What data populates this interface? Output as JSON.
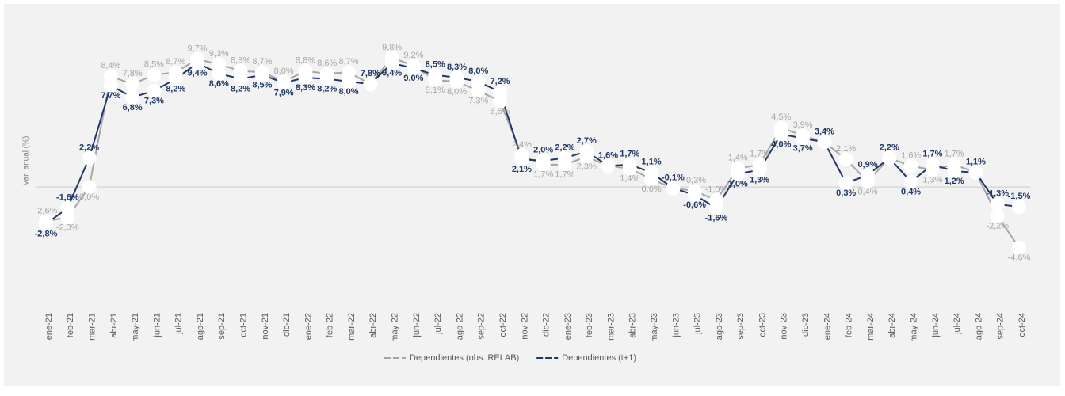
{
  "chart_data": {
    "type": "line",
    "y_label": "Var. anual (%)",
    "categories": [
      "ene-21",
      "feb-21",
      "mar-21",
      "abr-21",
      "may-21",
      "jun-21",
      "jul-21",
      "ago-21",
      "sep-21",
      "oct-21",
      "nov-21",
      "dic-21",
      "ene-22",
      "feb-22",
      "mar-22",
      "abr-22",
      "may-22",
      "jun-22",
      "jul-22",
      "ago-22",
      "sep-22",
      "oct-22",
      "nov-22",
      "dic-22",
      "ene-23",
      "feb-23",
      "mar-23",
      "abr-23",
      "may-23",
      "jun-23",
      "jul-23",
      "ago-23",
      "sep-23",
      "oct-23",
      "nov-23",
      "dic-23",
      "ene-24",
      "feb-24",
      "mar-24",
      "abr-24",
      "may-24",
      "jun-24",
      "jul-24",
      "ago-24",
      "sep-24",
      "oct-24"
    ],
    "series": [
      {
        "name": "Dependientes (obs. RELAB)",
        "color": "#a6a6a6",
        "values": [
          -2.6,
          -2.3,
          0.0,
          8.4,
          7.8,
          8.5,
          8.7,
          9.7,
          9.3,
          8.8,
          8.7,
          8.0,
          8.8,
          8.6,
          8.7,
          7.8,
          9.8,
          9.2,
          8.1,
          8.0,
          7.3,
          6.5,
          2.4,
          1.7,
          1.7,
          2.3,
          1.6,
          1.4,
          0.6,
          -0.1,
          -0.3,
          -1.0,
          1.4,
          1.7,
          4.5,
          3.9,
          3.4,
          2.1,
          0.4,
          2.2,
          1.6,
          1.3,
          1.7,
          1.1,
          -2.2,
          -4.6
        ],
        "value_labels": [
          "-2,6%",
          "-2,3%",
          "0,0%",
          "8,4%",
          "7,8%",
          "8,5%",
          "8,7%",
          "9,7%",
          "9,3%",
          "8,8%",
          "8,7%",
          "8,0%",
          "8,8%",
          "8,6%",
          "8,7%",
          "7,8%",
          "9,8%",
          "9,2%",
          "8,1%",
          "8,0%",
          "7,3%",
          "6,5%",
          "2,4%",
          "1,7%",
          "1,7%",
          "2,3%",
          "1,6%",
          "1,4%",
          "0,6%",
          "-0,1%",
          "-0,3%",
          "-1,0%",
          "1,4%",
          "1,7%",
          "4,5%",
          "3,9%",
          "3,4%",
          "2,1%",
          "0,4%",
          "2,2%",
          "1,6%",
          "1,3%",
          "1,7%",
          "1,1%",
          "-2,2%",
          "-4,6%"
        ]
      },
      {
        "name": "Dependientes (t+1)",
        "color": "#1f3864",
        "values": [
          -2.8,
          -1.6,
          2.2,
          7.7,
          6.8,
          7.3,
          8.2,
          9.4,
          8.6,
          8.2,
          8.5,
          7.9,
          8.3,
          8.2,
          8.0,
          7.8,
          9.4,
          9.0,
          8.5,
          8.3,
          8.0,
          7.2,
          2.1,
          2.0,
          2.2,
          2.7,
          1.6,
          1.7,
          1.1,
          -0.1,
          -0.6,
          -1.6,
          1.0,
          1.3,
          4.0,
          3.7,
          3.4,
          0.3,
          0.9,
          2.2,
          0.4,
          1.7,
          1.2,
          1.1,
          -1.3,
          -1.5
        ],
        "value_labels": [
          "-2,8%",
          "-1,6%",
          "2,2%",
          "7,7%",
          "6,8%",
          "7,3%",
          "8,2%",
          "9,4%",
          "8,6%",
          "8,2%",
          "8,5%",
          "7,9%",
          "8,3%",
          "8,2%",
          "8,0%",
          "7,8%",
          "9,4%",
          "9,0%",
          "8,5%",
          "8,3%",
          "8,0%",
          "7,2%",
          "2,1%",
          "2,0%",
          "2,2%",
          "2,7%",
          "1,6%",
          "1,7%",
          "1,1%",
          "-0,1%",
          "-0,6%",
          "-1,6%",
          "1,0%",
          "1,3%",
          "4,0%",
          "3,7%",
          "3,4%",
          "0,3%",
          "0,9%",
          "2,2%",
          "0,4%",
          "1,7%",
          "1,2%",
          "1,1%",
          "-1,3%",
          "-1,5%"
        ]
      }
    ],
    "ylim": [
      -6,
      11
    ]
  }
}
